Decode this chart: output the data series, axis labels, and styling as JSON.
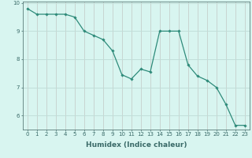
{
  "x": [
    0,
    1,
    2,
    3,
    4,
    5,
    6,
    7,
    8,
    9,
    10,
    11,
    12,
    13,
    14,
    15,
    16,
    17,
    18,
    19,
    20,
    21,
    22,
    23
  ],
  "y": [
    9.8,
    9.6,
    9.6,
    9.6,
    9.6,
    9.5,
    9.0,
    8.85,
    8.7,
    8.3,
    7.45,
    7.3,
    7.65,
    7.55,
    9.0,
    9.0,
    9.0,
    7.8,
    7.4,
    7.25,
    7.0,
    6.4,
    5.65,
    5.65
  ],
  "line_color": "#2e8b7a",
  "marker": "D",
  "marker_size": 1.8,
  "bg_color": "#d8f5f0",
  "grid_color": "#c0ddd8",
  "xlabel": "Humidex (Indice chaleur)",
  "xlim": [
    -0.5,
    23.5
  ],
  "ylim": [
    5.5,
    10.05
  ],
  "yticks": [
    6,
    7,
    8,
    9,
    10
  ],
  "xticks": [
    0,
    1,
    2,
    3,
    4,
    5,
    6,
    7,
    8,
    9,
    10,
    11,
    12,
    13,
    14,
    15,
    16,
    17,
    18,
    19,
    20,
    21,
    22,
    23
  ],
  "tick_fontsize": 5.0,
  "label_fontsize": 6.5,
  "axis_color": "#5a7a78",
  "tick_color": "#3a6a68",
  "line_width": 0.9
}
